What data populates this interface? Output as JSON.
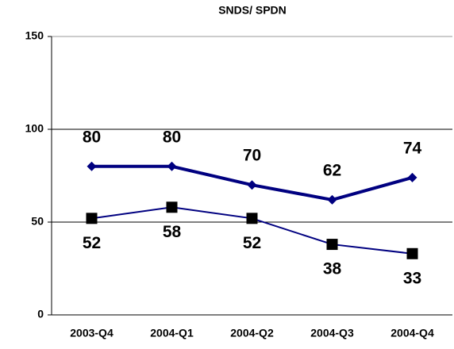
{
  "chart_data": {
    "type": "line",
    "title": "SNDS/ SPDN",
    "categories": [
      "2003-Q4",
      "2004-Q1",
      "2004-Q2",
      "2004-Q3",
      "2004-Q4"
    ],
    "series": [
      {
        "color": "#000080",
        "marker": "diamond",
        "values": [
          80,
          80,
          70,
          62,
          74
        ]
      },
      {
        "color": "#000080",
        "marker": "square",
        "marker_color": "#000000",
        "values": [
          52,
          58,
          52,
          38,
          33
        ]
      }
    ],
    "ylim": [
      0,
      150
    ],
    "yticks": [
      0,
      50,
      100,
      150
    ],
    "grid": true
  }
}
